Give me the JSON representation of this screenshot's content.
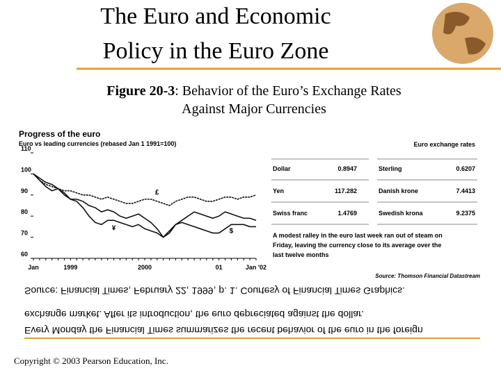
{
  "header": {
    "title_lines": [
      "The Euro and Economic",
      "Policy in the Euro Zone"
    ]
  },
  "figure": {
    "label": "Figure 20-3",
    "caption_lines": [
      ": Behavior of the Euro’s Exchange Rates",
      "Against Major Currencies"
    ]
  },
  "chart_data": {
    "type": "line",
    "title": "Progress of the euro",
    "subtitle": "Euro vs leading currencies (rebased Jan 1 1991=100)",
    "categories": [
      "Jan",
      null,
      null,
      null,
      null,
      null,
      "1999",
      null,
      null,
      null,
      null,
      null,
      null,
      null,
      null,
      null,
      null,
      null,
      "2000",
      null,
      null,
      null,
      null,
      null,
      null,
      null,
      null,
      null,
      null,
      null,
      "01",
      null,
      null,
      null,
      null,
      null,
      "Jan '02"
    ],
    "ylim": [
      60,
      110
    ],
    "yticks": [
      60,
      70,
      80,
      90,
      100,
      110
    ],
    "grid": false,
    "series": [
      {
        "name": "£",
        "color": "#111111",
        "values": [
          100,
          97,
          95,
          94,
          93,
          92,
          92,
          91,
          90,
          90,
          89,
          88,
          89,
          88,
          87,
          86,
          86,
          87,
          88,
          88,
          87,
          86,
          85,
          87,
          88,
          89,
          89,
          88,
          87,
          87,
          88,
          89,
          89,
          88,
          89,
          89,
          90
        ]
      },
      {
        "name": "¥",
        "color": "#111111",
        "values": [
          100,
          97,
          94,
          92,
          93,
          91,
          88,
          87,
          84,
          80,
          77,
          76,
          78,
          78,
          77,
          76,
          75,
          76,
          74,
          73,
          72,
          70,
          72,
          76,
          78,
          80,
          82,
          81,
          80,
          79,
          80,
          82,
          81,
          80,
          79,
          79,
          78
        ]
      },
      {
        "name": "$",
        "color": "#111111",
        "values": [
          100,
          98,
          96,
          95,
          93,
          90,
          88,
          88,
          87,
          85,
          84,
          82,
          83,
          82,
          80,
          79,
          80,
          81,
          79,
          77,
          74,
          70,
          73,
          76,
          77,
          76,
          75,
          74,
          73,
          72,
          72,
          74,
          76,
          76,
          76,
          75,
          75
        ]
      }
    ]
  },
  "rates": {
    "title": "Euro exchange rates",
    "rows": [
      [
        "Dollar",
        "0.8947",
        "Sterling",
        "0.6207"
      ],
      [
        "Yen",
        "117.282",
        "Danish krone",
        "7.4413"
      ],
      [
        "Swiss franc",
        "1.4769",
        "Swedish krona",
        "9.2375"
      ]
    ],
    "note_lines": [
      "A modest ralley in the euro last week ran out of steam on",
      "Friday, leaving the currency close to its average over the",
      "last twelve months"
    ],
    "source": "Source: Thomson Financial Datastream"
  },
  "mirrored_caption": [
    "Every Monday the Financial Times summarizes the recent behavior of the euro in the foreign",
    "exchange market. After its introduction, the euro depreciated against the dollar.",
    "Source: Financial Times, February 22, 1999, p. 1. Courtesy of Financial Times Graphics."
  ],
  "footer": {
    "copyright": "Copyright © 2003 Pearson Education, Inc."
  }
}
